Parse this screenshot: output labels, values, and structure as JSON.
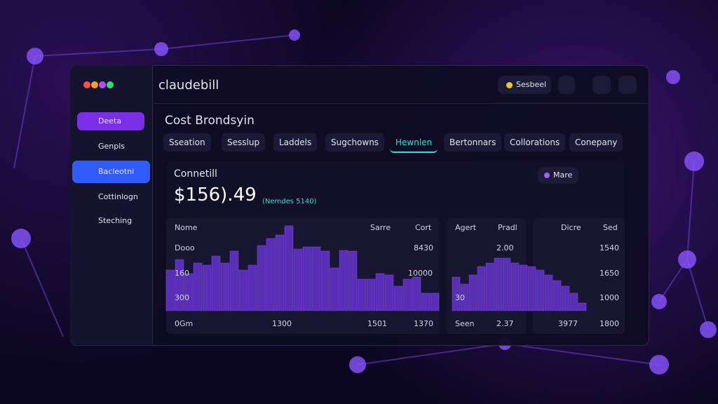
{
  "window": {
    "title": "claudebill",
    "status": "Sesbeel"
  },
  "sidebar": {
    "items": [
      "Deeta",
      "Genpls",
      "Bacleotnl",
      "Cottinlogn",
      "Steching"
    ]
  },
  "page_title": "Cost Brondsyin",
  "tabs": [
    "Sseation",
    "Sesslup",
    "Laddels",
    "Sugchowns",
    "Hewnlen",
    "Bertonnars",
    "Collorations",
    "Conepany"
  ],
  "card": {
    "title": "Connetill",
    "amount": "$156).49",
    "note": "(Nemdes 5140)",
    "button": "Mare"
  },
  "panels": [
    {
      "headers": [
        "Nome",
        "Sarre",
        "Cort"
      ],
      "rows": [
        [
          "Dooo",
          "8430"
        ],
        [
          "160",
          "10000"
        ],
        [
          "300"
        ]
      ],
      "footer": [
        "0Gm",
        "1300",
        "1501",
        "1370"
      ],
      "ylim": [
        0,
        130
      ],
      "bars": [
        58,
        73,
        53,
        68,
        65,
        78,
        68,
        85,
        58,
        65,
        93,
        103,
        108,
        121,
        88,
        91,
        91,
        85,
        61,
        86,
        85,
        45,
        45,
        53,
        51,
        35,
        45,
        48,
        25,
        25
      ]
    },
    {
      "headers": [
        "Agert",
        "Pradl"
      ],
      "rows": [
        [
          "2.00"
        ],
        [
          "30"
        ]
      ],
      "footer": [
        "Seen",
        "2.37"
      ],
      "ylim": [
        0,
        130
      ],
      "bars": [
        48,
        38,
        51,
        63,
        68,
        75,
        75,
        68,
        65,
        63,
        58,
        51,
        43,
        35,
        25,
        11
      ]
    },
    {
      "headers": [
        "Dicre",
        "Sed"
      ],
      "rows": [
        [
          "1540"
        ],
        [
          "1650"
        ],
        [
          "1000"
        ]
      ],
      "footer": [
        "3977",
        "1800"
      ]
    }
  ]
}
